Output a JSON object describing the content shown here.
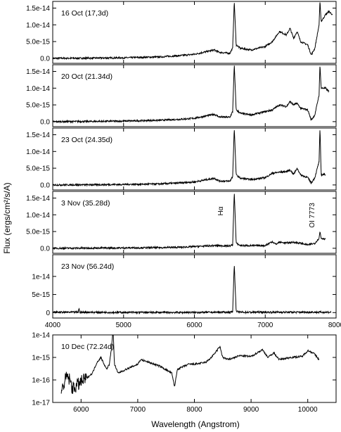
{
  "figure": {
    "ylabel": "Flux (ergs/cm²/s/A)",
    "xlabel_bottom": "Wavelength (Angstrom)"
  },
  "chart_data": [
    {
      "type": "line",
      "title": "16 Oct (17,3d)",
      "xlim": [
        4000,
        8000
      ],
      "ylim": [
        -1.5e-15,
        1.7e-14
      ],
      "yticks": [
        "0.0",
        "5.0e-15",
        "1.0e-14",
        "1.5e-14"
      ],
      "x": [
        4000,
        4500,
        5000,
        5500,
        5800,
        6000,
        6280,
        6350,
        6500,
        6540,
        6563,
        6590,
        6650,
        6800,
        7000,
        7100,
        7200,
        7300,
        7350,
        7400,
        7450,
        7500,
        7600,
        7650,
        7700,
        7760,
        7773,
        7790,
        7850,
        7900,
        7950
      ],
      "y": [
        0,
        5e-17,
        1.5e-16,
        4e-16,
        8e-16,
        1.2e-15,
        2.5e-15,
        1.8e-15,
        1.5e-15,
        3e-15,
        1.7e-14,
        4e-15,
        3e-15,
        2.5e-15,
        3.5e-15,
        5e-15,
        8e-15,
        7e-15,
        9e-15,
        6e-15,
        8e-15,
        5e-15,
        4e-15,
        1e-15,
        3e-15,
        1e-14,
        1.7e-14,
        1.1e-14,
        1.3e-14,
        1.4e-14,
        1.3e-14
      ]
    },
    {
      "type": "line",
      "title": "20 Oct (21.34d)",
      "xlim": [
        4000,
        8000
      ],
      "ylim": [
        -1.5e-15,
        1.7e-14
      ],
      "yticks": [
        "0.0",
        "5.0e-15",
        "1.0e-14",
        "1.5e-14"
      ],
      "x": [
        4000,
        4500,
        5000,
        5500,
        5800,
        6000,
        6280,
        6350,
        6500,
        6540,
        6563,
        6590,
        6650,
        6800,
        7000,
        7100,
        7200,
        7300,
        7350,
        7400,
        7450,
        7500,
        7600,
        7650,
        7700,
        7760,
        7773,
        7790,
        7850,
        7900
      ],
      "y": [
        0,
        5e-17,
        1.5e-16,
        4e-16,
        7e-16,
        1e-15,
        2.2e-15,
        1.4e-15,
        1.3e-15,
        3e-15,
        1.7e-14,
        3.5e-15,
        2.5e-15,
        2e-15,
        3e-15,
        3.5e-15,
        5e-15,
        4.5e-15,
        6e-15,
        5e-15,
        5.5e-15,
        4e-15,
        3.5e-15,
        5e-16,
        2e-15,
        8e-15,
        1.7e-14,
        1e-14,
        1e-14,
        9e-15
      ]
    },
    {
      "type": "line",
      "title": "23 Oct   (24.35d)",
      "xlim": [
        4000,
        8000
      ],
      "ylim": [
        -1.5e-15,
        1.7e-14
      ],
      "yticks": [
        "0.0",
        "5.0e-15",
        "1.0e-14",
        "1.5e-14"
      ],
      "x": [
        4000,
        4500,
        5000,
        5500,
        5800,
        6000,
        6280,
        6350,
        6500,
        6540,
        6563,
        6590,
        6650,
        6800,
        7000,
        7100,
        7200,
        7300,
        7350,
        7400,
        7450,
        7500,
        7600,
        7650,
        7700,
        7760,
        7773,
        7790,
        7850
      ],
      "y": [
        0,
        5e-17,
        1.5e-16,
        3e-16,
        6e-16,
        9e-16,
        2e-15,
        1.2e-15,
        1.1e-15,
        2.5e-15,
        1.7e-14,
        3e-15,
        2e-15,
        1.6e-15,
        2.2e-15,
        3.5e-15,
        3.8e-15,
        4e-15,
        4.5e-15,
        3.2e-15,
        5e-15,
        3e-15,
        2.2e-15,
        6e-16,
        2.2e-15,
        7e-15,
        1.7e-14,
        3e-15,
        3.2e-15
      ]
    },
    {
      "type": "line",
      "title": "3 Nov   (35.28d)",
      "annotations": [
        "Hα",
        "OI 7773"
      ],
      "xlim": [
        4000,
        8000
      ],
      "ylim": [
        -1.5e-15,
        1.7e-14
      ],
      "yticks": [
        "0.0",
        "5.0e-15",
        "1.0e-14",
        "1.5e-14"
      ],
      "x": [
        4000,
        4500,
        5000,
        5500,
        5800,
        6000,
        6300,
        6500,
        6540,
        6563,
        6590,
        6650,
        7000,
        7100,
        7150,
        7200,
        7300,
        7400,
        7500,
        7600,
        7700,
        7760,
        7773,
        7790,
        7850
      ],
      "y": [
        0,
        5e-17,
        1e-16,
        2e-16,
        3e-16,
        5e-16,
        8e-16,
        7e-16,
        1e-15,
        1.7e-14,
        1.5e-15,
        8e-16,
        8e-16,
        2e-15,
        1.2e-15,
        1.8e-15,
        1.6e-15,
        1.8e-15,
        1.5e-15,
        1e-15,
        1.5e-15,
        3e-15,
        5e-15,
        3e-15,
        2.8e-15
      ]
    },
    {
      "type": "line",
      "title": "23 Nov   (56.24d)",
      "xlim": [
        4000,
        8000
      ],
      "ylim": [
        -1.5e-15,
        1.6e-14
      ],
      "yticks": [
        "0",
        "5e-15",
        "1e-14"
      ],
      "x": [
        4000,
        4360,
        4370,
        4380,
        5000,
        6000,
        6500,
        6540,
        6563,
        6590,
        6650,
        7000,
        7500,
        7930
      ],
      "y": [
        1e-16,
        1e-16,
        1.3e-15,
        1e-16,
        5e-17,
        5e-17,
        1e-16,
        3e-16,
        1.35e-14,
        3e-16,
        1e-16,
        1e-16,
        1e-16,
        1e-16
      ]
    },
    {
      "type": "line",
      "title": "10 Dec (72.24d)",
      "xlim": [
        5500,
        10500
      ],
      "ylim": [
        1e-17,
        1e-14
      ],
      "yscale": "log",
      "yticks": [
        "1e-17",
        "1e-16",
        "1e-15",
        "1e-14"
      ],
      "x": [
        5650,
        5750,
        5800,
        5850,
        5900,
        6000,
        6100,
        6200,
        6280,
        6350,
        6450,
        6500,
        6540,
        6563,
        6590,
        6650,
        6800,
        7000,
        7050,
        7200,
        7400,
        7600,
        7650,
        7700,
        7900,
        8000,
        8200,
        8300,
        8450,
        8500,
        8600,
        8800,
        9000,
        9200,
        9300,
        9400,
        9500,
        9700,
        9900,
        10000,
        10100,
        10200
      ],
      "y": [
        3e-17,
        1.5e-16,
        1e-16,
        4e-17,
        5e-17,
        8e-17,
        1.2e-16,
        2e-16,
        6e-16,
        1e-15,
        3e-16,
        5e-16,
        3e-15,
        2e-14,
        5e-16,
        2e-16,
        3e-16,
        5e-16,
        8e-16,
        6e-16,
        4e-16,
        2e-16,
        5e-17,
        3e-16,
        5e-16,
        5e-16,
        6e-16,
        1e-15,
        3e-15,
        1e-15,
        8e-16,
        1.2e-15,
        1.1e-15,
        2.2e-15,
        1e-15,
        1.6e-15,
        8e-16,
        1e-15,
        1.1e-15,
        2e-15,
        1.6e-15,
        8e-16
      ],
      "xticks": [
        "6000",
        "7000",
        "8000",
        "9000",
        "10000"
      ]
    }
  ],
  "shared_xaxis": {
    "xticks": [
      "4000",
      "5000",
      "6000",
      "7000",
      "8000"
    ]
  }
}
